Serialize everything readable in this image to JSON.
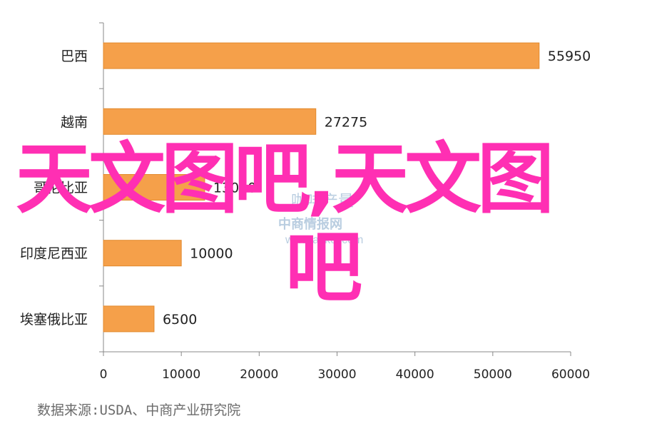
{
  "chart_data": {
    "type": "bar",
    "orientation": "horizontal",
    "categories": [
      "巴西",
      "越南",
      "哥伦比亚",
      "印度尼西亚",
      "埃塞俄比亚"
    ],
    "values": [
      55950,
      27275,
      13000,
      10000,
      6500
    ],
    "value_labels": [
      "55950",
      "27275",
      "13000",
      "10000",
      "6500"
    ],
    "xlim": [
      0,
      60000
    ],
    "x_ticks": [
      0,
      10000,
      20000,
      30000,
      40000,
      50000,
      60000
    ],
    "x_tick_labels": [
      "0",
      "10000",
      "20000",
      "30000",
      "40000",
      "50000",
      "60000"
    ],
    "bar_color": "#f5a04a",
    "bar_edge_color": "#e28a2e",
    "grid": false,
    "legend": "none"
  },
  "source_text": "数据来源:USDA、中商产业研究院",
  "watermark": {
    "line1": "天文图吧,天文图",
    "line2": "吧",
    "color": "#ff2fb3",
    "faint_text": [
      "咖啡产量",
      "中商情报网",
      "www.askci.com"
    ]
  }
}
